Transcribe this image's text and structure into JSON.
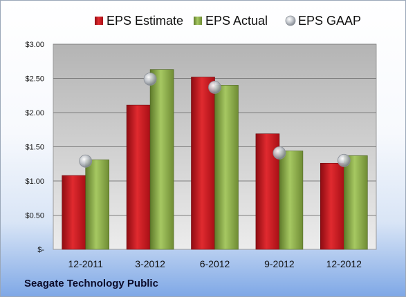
{
  "chart_data": {
    "type": "bar",
    "categories": [
      "12-2011",
      "3-2012",
      "6-2012",
      "9-2012",
      "12-2012"
    ],
    "series": [
      {
        "name": "EPS Estimate",
        "type": "bar",
        "color": "#c8141e",
        "values": [
          1.08,
          2.11,
          2.52,
          1.69,
          1.26
        ]
      },
      {
        "name": "EPS Actual",
        "type": "bar",
        "color": "#8fb04a",
        "values": [
          1.31,
          2.63,
          2.4,
          1.44,
          1.37
        ]
      },
      {
        "name": "EPS GAAP",
        "type": "marker",
        "color": "#b8bcc2",
        "values": [
          1.29,
          2.49,
          2.37,
          1.41,
          1.3
        ]
      }
    ],
    "ylim": [
      0,
      3.0
    ],
    "yticks": [
      0,
      0.5,
      1.0,
      1.5,
      2.0,
      2.5,
      3.0
    ],
    "ytick_labels": [
      "$-",
      "$0.50",
      "$1.00",
      "$1.50",
      "$2.00",
      "$2.50",
      "$3.00"
    ],
    "grid": true,
    "legend_position": "top"
  },
  "footer": {
    "company": "Seagate Technology Public"
  }
}
